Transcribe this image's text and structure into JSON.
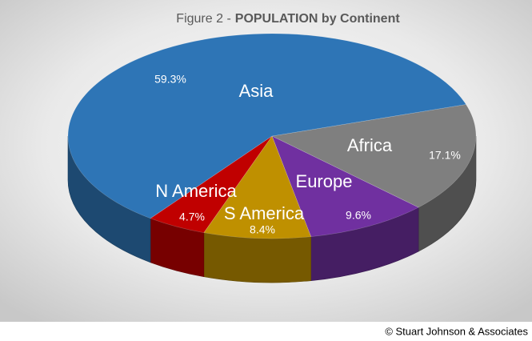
{
  "chart_data": {
    "type": "pie",
    "title": [
      "Figure 2 -",
      "POPULATION by Continent"
    ],
    "categories": [
      "Africa",
      "Europe",
      "S America",
      "N America",
      "Asia"
    ],
    "values": [
      17.1,
      9.6,
      8.4,
      4.7,
      59.3
    ],
    "value_labels": [
      "17.1%",
      "9.6%",
      "8.4%",
      "4.7%",
      "59.3%"
    ],
    "colors": [
      "#7f7f7f",
      "#7030a0",
      "#bf9000",
      "#c00000",
      "#2e75b6"
    ],
    "credit": "© Stuart Johnson & Associates"
  }
}
